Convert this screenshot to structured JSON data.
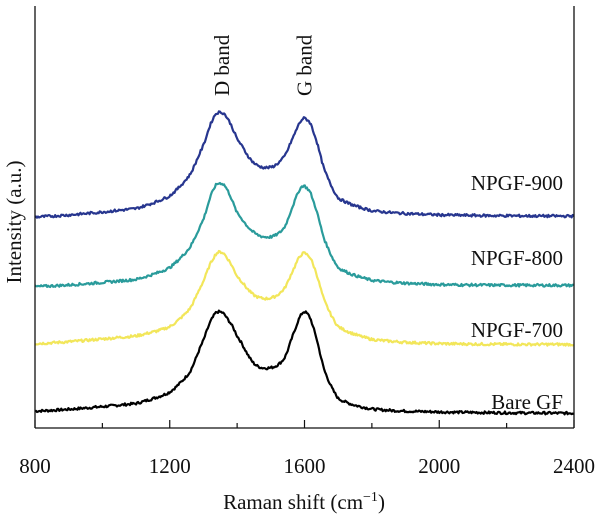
{
  "chart_data": {
    "type": "line",
    "xlabel": "Raman shift (cm",
    "xlabel_sup": "−1",
    "xlabel_tail": ")",
    "ylabel": "Intensity (a.u.)",
    "xlim": [
      800,
      2400
    ],
    "ylim": [
      0,
      1
    ],
    "x_ticks": [
      800,
      1200,
      1600,
      2000,
      2400
    ],
    "x_tick_labels": [
      "800",
      "1200",
      "1600",
      "2000",
      "2400"
    ],
    "grid": false,
    "annotations": [
      {
        "text": "D band",
        "x": 1355
      },
      {
        "text": "G band",
        "x": 1600
      }
    ],
    "series": [
      {
        "name": "Bare GF",
        "color": "#000000",
        "x": [
          800,
          1100,
          1200,
          1260,
          1300,
          1330,
          1350,
          1370,
          1400,
          1450,
          1500,
          1540,
          1570,
          1590,
          1605,
          1625,
          1660,
          1700,
          1800,
          2000,
          2400
        ],
        "y": [
          0.04,
          0.058,
          0.085,
          0.133,
          0.208,
          0.265,
          0.275,
          0.26,
          0.218,
          0.153,
          0.143,
          0.165,
          0.228,
          0.268,
          0.273,
          0.24,
          0.135,
          0.07,
          0.045,
          0.038,
          0.035
        ]
      },
      {
        "name": "NPGF-700",
        "color": "#f2e65a",
        "x": [
          800,
          1100,
          1200,
          1260,
          1300,
          1330,
          1350,
          1370,
          1400,
          1450,
          1500,
          1540,
          1570,
          1590,
          1605,
          1625,
          1660,
          1700,
          1800,
          2000,
          2400
        ],
        "y": [
          0.2,
          0.218,
          0.24,
          0.283,
          0.348,
          0.403,
          0.417,
          0.403,
          0.36,
          0.315,
          0.308,
          0.33,
          0.38,
          0.41,
          0.412,
          0.388,
          0.3,
          0.24,
          0.21,
          0.2,
          0.198
        ]
      },
      {
        "name": "NPGF-800",
        "color": "#2a9b9b",
        "x": [
          800,
          1100,
          1200,
          1260,
          1300,
          1330,
          1350,
          1370,
          1400,
          1450,
          1500,
          1540,
          1570,
          1590,
          1605,
          1625,
          1660,
          1700,
          1800,
          2000,
          2400
        ],
        "y": [
          0.335,
          0.352,
          0.38,
          0.428,
          0.495,
          0.565,
          0.58,
          0.565,
          0.51,
          0.463,
          0.453,
          0.475,
          0.535,
          0.57,
          0.57,
          0.54,
          0.445,
          0.38,
          0.35,
          0.34,
          0.338
        ]
      },
      {
        "name": "NPGF-900",
        "color": "#27368f",
        "x": [
          800,
          1100,
          1200,
          1260,
          1300,
          1330,
          1350,
          1370,
          1400,
          1450,
          1500,
          1540,
          1570,
          1590,
          1605,
          1625,
          1660,
          1700,
          1800,
          2000,
          2400
        ],
        "y": [
          0.5,
          0.52,
          0.55,
          0.6,
          0.67,
          0.735,
          0.748,
          0.735,
          0.685,
          0.628,
          0.618,
          0.643,
          0.695,
          0.728,
          0.732,
          0.705,
          0.61,
          0.545,
          0.515,
          0.505,
          0.502
        ]
      }
    ]
  }
}
